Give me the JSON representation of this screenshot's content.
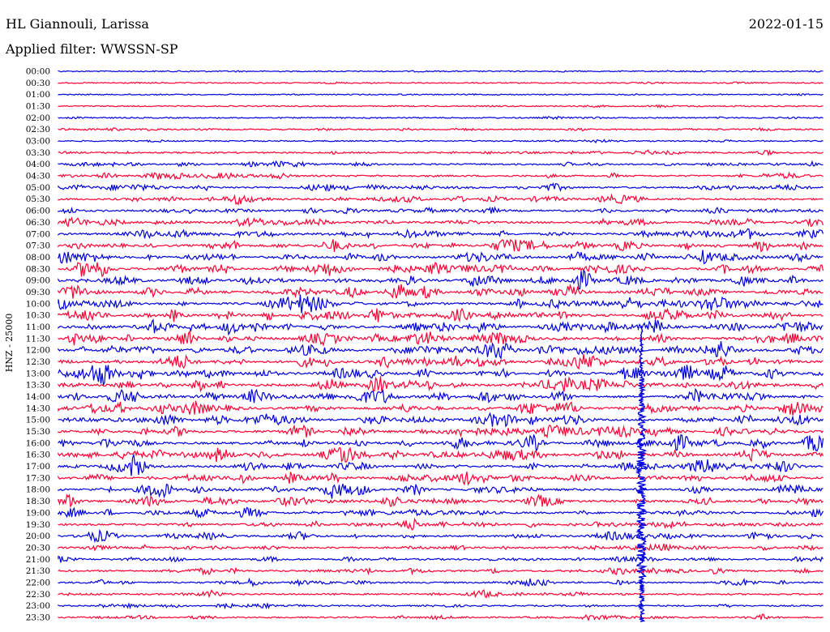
{
  "header": {
    "station": "HL Giannouli, Larissa",
    "date": "2022-01-15",
    "filter": "Applied filter: WWSSN-SP"
  },
  "colors": {
    "trace_a": "#0000dd",
    "trace_b": "#ff0033"
  },
  "chart_data": {
    "type": "line",
    "title": "HL Giannouli, Larissa",
    "date": "2022-01-15",
    "subtitle": "Applied filter: WWSSN-SP",
    "ylabel": "HNZ - 25000",
    "ytick_labels": [
      "00:00",
      "00:30",
      "01:00",
      "01:30",
      "02:00",
      "02:30",
      "03:00",
      "03:30",
      "04:00",
      "04:30",
      "05:00",
      "05:30",
      "06:00",
      "06:30",
      "07:00",
      "07:30",
      "08:00",
      "08:30",
      "09:00",
      "09:30",
      "10:00",
      "10:30",
      "11:00",
      "11:30",
      "12:00",
      "12:30",
      "13:00",
      "13:30",
      "14:00",
      "14:30",
      "15:00",
      "15:30",
      "16:00",
      "16:30",
      "17:00",
      "17:30",
      "18:00",
      "18:30",
      "19:00",
      "19:30",
      "20:00",
      "20:30",
      "21:00",
      "21:30",
      "22:00",
      "22:30",
      "23:00",
      "23:30"
    ],
    "trace_colors": [
      "blue",
      "red"
    ],
    "grid": false,
    "legend": "none",
    "noise_level": [
      0.1,
      0.1,
      0.08,
      0.1,
      0.15,
      0.2,
      0.15,
      0.3,
      0.4,
      0.45,
      0.5,
      0.5,
      0.5,
      0.6,
      0.65,
      0.7,
      0.75,
      0.8,
      0.8,
      0.8,
      0.8,
      0.85,
      0.85,
      0.85,
      0.85,
      0.85,
      0.85,
      0.85,
      0.85,
      0.85,
      0.8,
      0.8,
      0.8,
      0.8,
      0.75,
      0.75,
      0.7,
      0.7,
      0.65,
      0.6,
      0.55,
      0.5,
      0.45,
      0.45,
      0.4,
      0.35,
      0.3,
      0.3
    ],
    "major_event": {
      "start_row": 24,
      "end_row": 47,
      "time_fraction": 0.76
    }
  }
}
